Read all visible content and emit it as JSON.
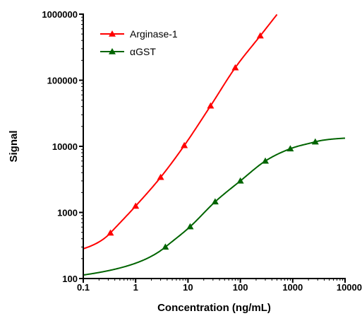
{
  "chart_data": {
    "type": "scatter",
    "title": "",
    "xlabel": "Concentration (ng/mL)",
    "ylabel": "Signal",
    "x_scale": "log",
    "y_scale": "log",
    "xlim": [
      0.1,
      10000
    ],
    "ylim": [
      100,
      1000000
    ],
    "x_ticks": [
      "0.1",
      "1",
      "10",
      "100",
      "1000",
      "10000"
    ],
    "y_ticks": [
      "100",
      "1000",
      "10000",
      "100000",
      "1000000"
    ],
    "grid": false,
    "legend_position": "top-left",
    "series": [
      {
        "name": "Arginase-1",
        "color": "#ff0000",
        "marker": "triangle",
        "points": [
          {
            "x": 0.33,
            "y": 490
          },
          {
            "x": 1,
            "y": 1250
          },
          {
            "x": 3,
            "y": 3400
          },
          {
            "x": 8.5,
            "y": 10300
          },
          {
            "x": 27,
            "y": 41000
          },
          {
            "x": 80,
            "y": 155000
          },
          {
            "x": 240,
            "y": 470000
          }
        ]
      },
      {
        "name": "αGST",
        "color": "#006400",
        "marker": "triangle",
        "points": [
          {
            "x": 3.7,
            "y": 300
          },
          {
            "x": 11,
            "y": 610
          },
          {
            "x": 33,
            "y": 1450
          },
          {
            "x": 100,
            "y": 3000
          },
          {
            "x": 300,
            "y": 6000
          },
          {
            "x": 900,
            "y": 9200
          },
          {
            "x": 2700,
            "y": 11700
          }
        ]
      }
    ]
  }
}
